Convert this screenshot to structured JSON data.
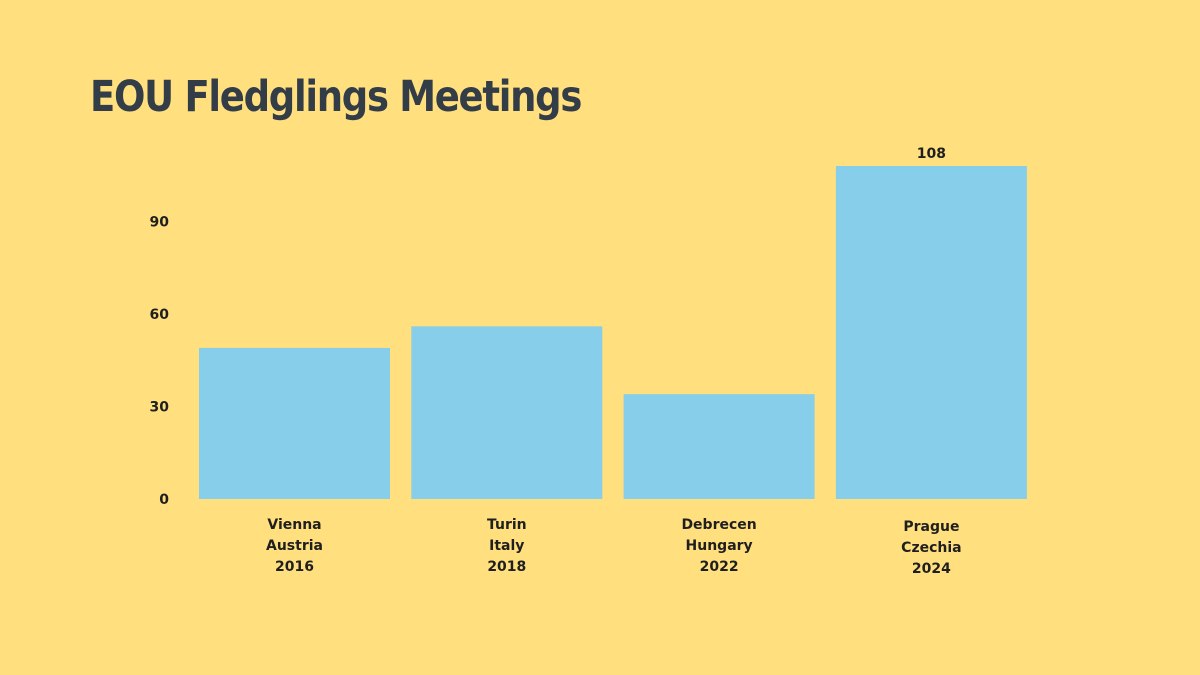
{
  "title": "EOU Fledglings Meetings",
  "colors": {
    "background": "#FFDF7E",
    "bar": "#87CEEB",
    "title": "#333D47",
    "text": "#1F1F1F"
  },
  "chart_data": {
    "type": "bar",
    "title": "EOU Fledglings Meetings",
    "categories": [
      [
        "Vienna",
        "Austria",
        "2016"
      ],
      [
        "Turin",
        "Italy",
        "2018"
      ],
      [
        "Debrecen",
        "Hungary",
        "2022"
      ],
      [
        "Prague",
        "Czechia",
        "2024"
      ]
    ],
    "values": [
      49,
      56,
      34,
      108
    ],
    "data_labels": [
      "",
      "",
      "",
      "108"
    ],
    "yticks": [
      0,
      30,
      60,
      90
    ],
    "ylim": [
      0,
      108
    ],
    "xlabel": "",
    "ylabel": "",
    "grid": false,
    "legend": "none"
  }
}
